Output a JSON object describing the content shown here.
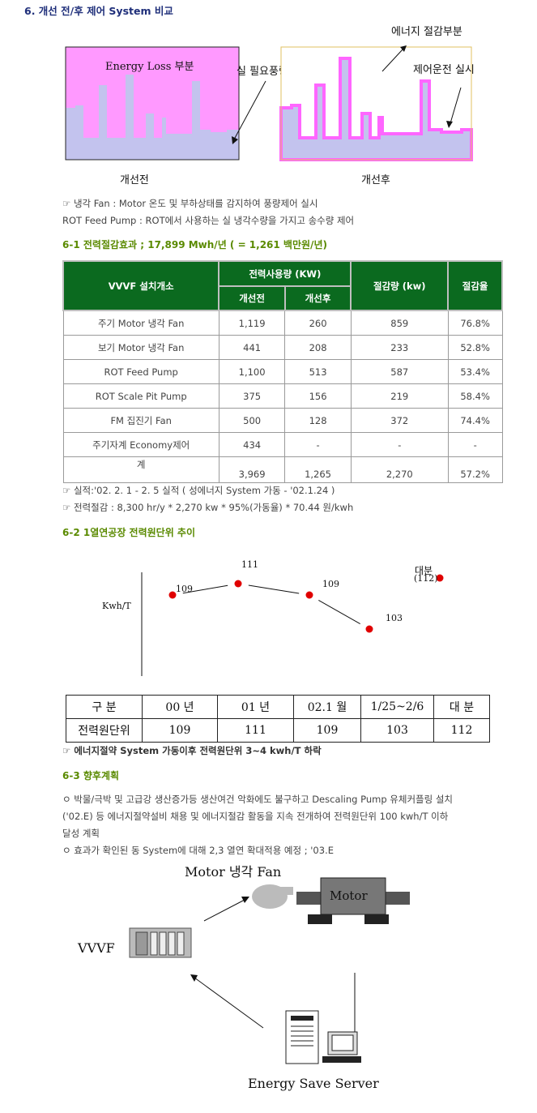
{
  "header": {
    "title": "6. 개선 전/후 제어 System 비교"
  },
  "compare_figure": {
    "energy_loss_label": "Energy Loss 부분",
    "required_flow_label": "실 필요풍량/유량",
    "energy_saving_label": "에너지 절감부분",
    "control_label": "제어운전 실시",
    "before_caption": "개선전",
    "after_caption": "개선후"
  },
  "notes1": [
    "☞ 냉각 Fan : Motor 온도 및 부하상태를 감지하여 풍량제어 실시",
    "ROT Feed Pump : ROT에서 사용하는 실 냉각수량을 가지고 송수량 제어"
  ],
  "section1": {
    "title": "6-1 전력절감효과 ; 17,899 Mwh/년 ( = 1,261 백만원/년)"
  },
  "power_table": {
    "h_location": "VVVF 설치개소",
    "h_usage": "전력사용량 (KW)",
    "h_before": "개선전",
    "h_after": "개선후",
    "h_saving": "절감량 (kw)",
    "h_rate": "절감율",
    "rows": [
      [
        "주기 Motor 냉각 Fan",
        "1,119",
        "260",
        "859",
        "76.8%"
      ],
      [
        "보기 Motor 냉각 Fan",
        "441",
        "208",
        "233",
        "52.8%"
      ],
      [
        "ROT Feed Pump",
        "1,100",
        "513",
        "587",
        "53.4%"
      ],
      [
        "ROT Scale Pit Pump",
        "375",
        "156",
        "219",
        "58.4%"
      ],
      [
        "FM 집진기 Fan",
        "500",
        "128",
        "372",
        "74.4%"
      ],
      [
        "주기자계 Economy제어",
        "434",
        "-",
        "-",
        "-"
      ],
      [
        "계",
        "3,969",
        "1,265",
        "2,270",
        "57.2%"
      ]
    ]
  },
  "notes2": [
    "☞ 실적:'02. 2. 1 - 2. 5 실적 ( 성에너지 System 가동 - '02.1.24 )",
    "☞ 전력절감 : 8,300 hr/y * 2,270 kw * 95%(가동율) * 70.44 원/kwh"
  ],
  "section2": {
    "title": "6-2 1열연공장 전력원단위 추이"
  },
  "chart_data": {
    "type": "scatter",
    "ylabel": "Kwh/T",
    "categories": [
      "00 년",
      "01 년",
      "02.1 월",
      "1/25~2/6",
      "대 분"
    ],
    "values": [
      109,
      111,
      109,
      103,
      112
    ],
    "labels": [
      "109",
      "111",
      "109",
      "103",
      "(112)"
    ],
    "annotation": "대분",
    "connected": [
      0,
      1,
      2,
      3
    ],
    "point_color": "#e00000"
  },
  "kwh_table": {
    "header": [
      "구  분",
      "00 년",
      "01 년",
      "02.1 월",
      "1/25~2/6",
      "대 분"
    ],
    "row": [
      "전력원단위",
      "109",
      "111",
      "109",
      "103",
      "112"
    ]
  },
  "note3": "☞ 에너지절약 System 가동이후 전력원단위 3~4 kwh/T 하락",
  "section3": {
    "title": "6-3 향후계획"
  },
  "plan": [
    "ㅇ 박물/극박 및 고급강 생산증가등 생산여건 악화에도 불구하고 Descaling Pump 유체커플링 설치",
    "('02.E) 등 에너지절약설비 채용 및 에너지절감 활동을 지속 전개하여 전력원단위 100 kwh/T 이하",
    "달성 계획",
    "ㅇ 효과가 확인된 동 System에 대해 2,3 열연 확대적용 예정 ; '03.E"
  ],
  "system_diagram": {
    "fan_label": "Motor 냉각 Fan",
    "motor_label": "Motor",
    "vvvf_label": "VVVF",
    "server_label": "Energy Save Server"
  }
}
